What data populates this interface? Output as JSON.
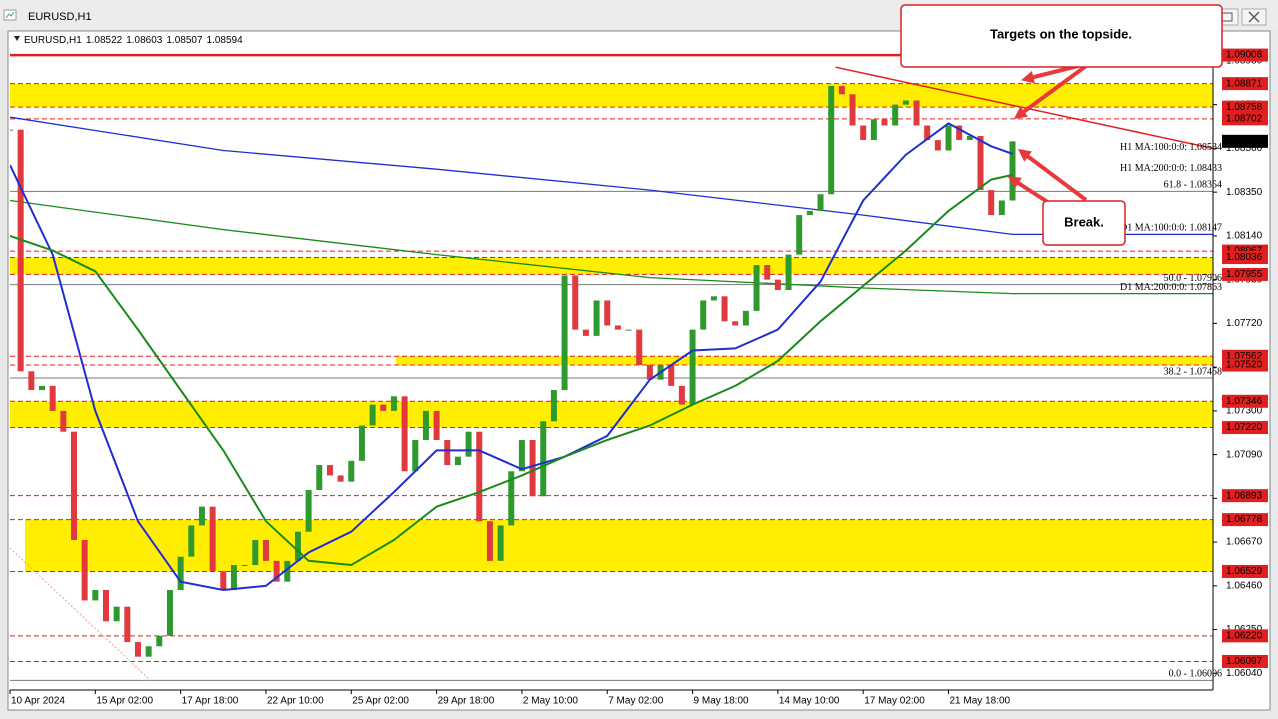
{
  "window": {
    "title": "EURUSD,H1"
  },
  "chart_data": {
    "type": "line",
    "title": "EURUSD,H1",
    "ohlc": [
      1.08522,
      1.08603,
      1.08507,
      1.08594
    ],
    "last_price": 1.08594,
    "up_color": "#2e9a2e",
    "down_color": "#e0393e",
    "xlim": [
      0,
      564
    ],
    "xticks": [
      {
        "value": 0,
        "label": "10 Apr 2024"
      },
      {
        "value": 40,
        "label": "15 Apr 02:00"
      },
      {
        "value": 80,
        "label": "17 Apr 18:00"
      },
      {
        "value": 120,
        "label": "22 Apr 10:00"
      },
      {
        "value": 160,
        "label": "25 Apr 02:00"
      },
      {
        "value": 200,
        "label": "29 Apr 18:00"
      },
      {
        "value": 240,
        "label": "2 May 10:00"
      },
      {
        "value": 280,
        "label": "7 May 02:00"
      },
      {
        "value": 320,
        "label": "9 May 18:00"
      },
      {
        "value": 360,
        "label": "14 May 10:00"
      },
      {
        "value": 400,
        "label": "17 May 02:00"
      },
      {
        "value": 440,
        "label": "21 May 18:00"
      }
    ],
    "ylim": [
      1.0596,
      1.0909
    ],
    "yticks": [
      {
        "value": 1.0604,
        "label": "1.06040"
      },
      {
        "value": 1.0625,
        "label": "1.06250"
      },
      {
        "value": 1.0646,
        "label": "1.06460"
      },
      {
        "value": 1.0667,
        "label": "1.06670"
      },
      {
        "value": 1.0688,
        "label": "1.06880"
      },
      {
        "value": 1.0709,
        "label": "1.07090"
      },
      {
        "value": 1.073,
        "label": "1.07300"
      },
      {
        "value": 1.0751,
        "label": "1.07510"
      },
      {
        "value": 1.0772,
        "label": "1.07720"
      },
      {
        "value": 1.0793,
        "label": "1.07930"
      },
      {
        "value": 1.0814,
        "label": "1.08140"
      },
      {
        "value": 1.0835,
        "label": "1.08350"
      },
      {
        "value": 1.0856,
        "label": "1.08560"
      },
      {
        "value": 1.0877,
        "label": "1.08770"
      },
      {
        "value": 1.0898,
        "label": "1.08980"
      }
    ],
    "x": [
      0,
      5,
      10,
      15,
      20,
      25,
      30,
      35,
      40,
      45,
      50,
      55,
      60,
      65,
      70,
      75,
      80,
      85,
      90,
      95,
      100,
      105,
      110,
      115,
      120,
      125,
      130,
      135,
      140,
      145,
      150,
      155,
      160,
      165,
      170,
      175,
      180,
      185,
      190,
      195,
      200,
      205,
      210,
      215,
      220,
      225,
      230,
      235,
      240,
      245,
      250,
      255,
      260,
      265,
      270,
      275,
      280,
      285,
      290,
      295,
      300,
      305,
      310,
      315,
      320,
      325,
      330,
      335,
      340,
      345,
      350,
      355,
      360,
      365,
      370,
      375,
      380,
      385,
      390,
      395,
      400,
      405,
      410,
      415,
      420,
      425,
      430,
      435,
      440,
      445,
      450,
      455,
      460,
      465,
      470
    ],
    "values": [
      1.0865,
      1.0749,
      1.074,
      1.0742,
      1.073,
      1.072,
      1.0668,
      1.0639,
      1.0644,
      1.0629,
      1.0636,
      1.0619,
      1.0612,
      1.0617,
      1.0622,
      1.0644,
      1.066,
      1.0675,
      1.0684,
      1.0653,
      1.0644,
      1.0656,
      1.0656,
      1.0668,
      1.0658,
      1.0648,
      1.0658,
      1.0672,
      1.0692,
      1.0704,
      1.0699,
      1.0696,
      1.0706,
      1.0723,
      1.0733,
      1.073,
      1.0737,
      1.0701,
      1.0716,
      1.073,
      1.0716,
      1.0704,
      1.0708,
      1.072,
      1.0677,
      1.0658,
      1.0675,
      1.0701,
      1.0716,
      1.0689,
      1.0725,
      1.074,
      1.0795,
      1.0769,
      1.0766,
      1.0783,
      1.0771,
      1.0769,
      1.0769,
      1.0752,
      1.0745,
      1.0752,
      1.0742,
      1.0733,
      1.0769,
      1.0783,
      1.0785,
      1.0773,
      1.0771,
      1.0778,
      1.08,
      1.0793,
      1.0788,
      1.0805,
      1.0824,
      1.0826,
      1.0834,
      1.0886,
      1.0882,
      1.0867,
      1.086,
      1.087,
      1.0867,
      1.0877,
      1.0879,
      1.0867,
      1.086,
      1.0855,
      1.0867,
      1.086,
      1.0862,
      1.0836,
      1.0824,
      1.0831,
      1.08594
    ],
    "series": [
      {
        "name": "D1 MA:100:0:0: 1.08147",
        "color": "#1f2fd0",
        "x": [
          0,
          100,
          200,
          300,
          400,
          470,
          564
        ],
        "values": [
          1.0871,
          1.0855,
          1.0846,
          1.0836,
          1.0824,
          1.08147,
          1.08147
        ]
      },
      {
        "name": "D1 MA:200:0:0: 1.07863",
        "color": "#1a8a1a",
        "x": [
          0,
          100,
          200,
          300,
          400,
          470,
          564
        ],
        "values": [
          1.0831,
          1.0817,
          1.0805,
          1.0794,
          1.0789,
          1.07863,
          1.07863
        ]
      },
      {
        "name": "H1 MA:100:0:0: 1.08534",
        "color": "#1f2fd0",
        "x": [
          0,
          20,
          40,
          60,
          80,
          100,
          120,
          140,
          160,
          180,
          200,
          220,
          240,
          260,
          280,
          300,
          320,
          340,
          360,
          380,
          400,
          420,
          440,
          460,
          470
        ],
        "values": [
          1.0848,
          1.0805,
          1.073,
          1.0677,
          1.0648,
          1.0644,
          1.0646,
          1.0662,
          1.0672,
          1.0691,
          1.0711,
          1.0711,
          1.0702,
          1.0708,
          1.0718,
          1.0745,
          1.0759,
          1.076,
          1.0769,
          1.0792,
          1.0831,
          1.0853,
          1.0868,
          1.0857,
          1.08534
        ]
      },
      {
        "name": "H1 MA:200:0:0: 1.08433",
        "color": "#1a8a1a",
        "x": [
          0,
          20,
          40,
          60,
          80,
          100,
          120,
          140,
          160,
          180,
          200,
          220,
          240,
          260,
          280,
          300,
          320,
          340,
          360,
          380,
          400,
          420,
          440,
          460,
          470
        ],
        "values": [
          1.0814,
          1.0807,
          1.0797,
          1.0769,
          1.074,
          1.0711,
          1.0677,
          1.0658,
          1.0656,
          1.0668,
          1.0684,
          1.0691,
          1.0699,
          1.0708,
          1.0716,
          1.0723,
          1.0733,
          1.0742,
          1.0754,
          1.0773,
          1.079,
          1.0807,
          1.0826,
          1.0841,
          1.08433
        ]
      }
    ],
    "trendline": {
      "color": "#e02020",
      "x": [
        387,
        564
      ],
      "values": [
        1.0895,
        1.0856
      ]
    },
    "level_color": "#e02020",
    "zone_color": "#ffee00",
    "levels": [
      {
        "value": 1.09008,
        "style": "solid"
      },
      {
        "value": 1.08871,
        "style": "dashed"
      },
      {
        "value": 1.08758,
        "style": "dashed"
      },
      {
        "value": 1.08702,
        "style": "dashed"
      },
      {
        "value": 1.08067,
        "style": "dashed"
      },
      {
        "value": 1.08036,
        "style": "dashed"
      },
      {
        "value": 1.07955,
        "style": "dashed"
      },
      {
        "value": 1.07562,
        "style": "dashed"
      },
      {
        "value": 1.0752,
        "label": "1.07520",
        "style": "dashed"
      },
      {
        "value": 1.07346,
        "style": "dashed"
      },
      {
        "value": 1.0722,
        "label": "1.07220",
        "style": "dashed"
      },
      {
        "value": 1.06893,
        "style": "dashed"
      },
      {
        "value": 1.06778,
        "style": "dashed"
      },
      {
        "value": 1.06529,
        "style": "dashed"
      },
      {
        "value": 1.0622,
        "label": "1.06220",
        "style": "dashed"
      },
      {
        "value": 1.06097,
        "style": "dashed"
      }
    ],
    "zones": [
      {
        "from": 1.08871,
        "to": 1.08758,
        "start": 0
      },
      {
        "from": 1.08036,
        "to": 1.07955,
        "start": 0
      },
      {
        "from": 1.07562,
        "to": 1.0752,
        "start": 181
      },
      {
        "from": 1.07346,
        "to": 1.0722,
        "start": 0
      },
      {
        "from": 1.06778,
        "to": 1.06529,
        "start": 7
      }
    ],
    "fib": [
      {
        "label": "61.8 - 1.08354",
        "value": 1.08354
      },
      {
        "label": "50.0 - 1.07906",
        "value": 1.07906
      },
      {
        "label": "38.2 - 1.07458",
        "value": 1.07458
      },
      {
        "label": "0.0 - 1.06006",
        "value": 1.06006
      }
    ],
    "annotations": [
      "Targets on the topside.",
      "Break."
    ]
  }
}
